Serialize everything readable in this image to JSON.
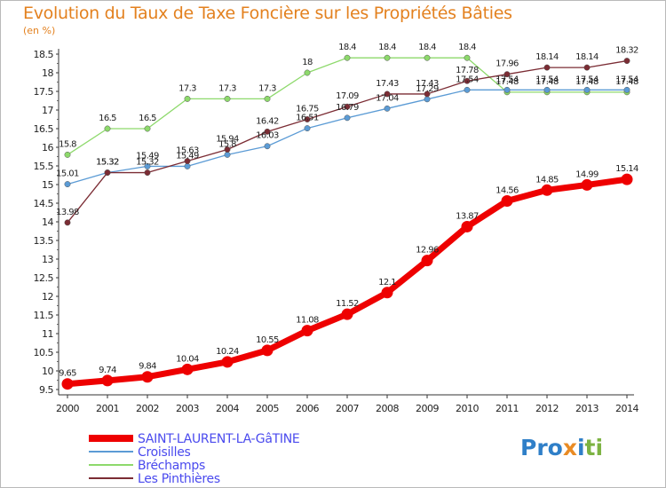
{
  "title": "Evolution du Taux de Taxe Foncière sur les Propriétés Bâties",
  "unit": "(en %)",
  "logo": {
    "part1": "Pro",
    "part2": "x",
    "part3": "i",
    "part4": "ti"
  },
  "chart_data": {
    "type": "line",
    "x": [
      "2000",
      "2001",
      "2002",
      "2003",
      "2004",
      "2005",
      "2006",
      "2007",
      "2008",
      "2009",
      "2010",
      "2011",
      "2012",
      "2013",
      "2014"
    ],
    "ylim": [
      9.5,
      18.5
    ],
    "yticks": [
      9.5,
      10,
      10.5,
      11,
      11.5,
      12,
      12.5,
      13,
      13.5,
      14,
      14.5,
      15,
      15.5,
      16,
      16.5,
      17,
      17.5,
      18,
      18.5
    ],
    "grid": false,
    "legend_position": "bottom-left",
    "series": [
      {
        "name": "SAINT-LAURENT-LA-GâTINE",
        "color": "#ee0000",
        "values": [
          9.65,
          9.74,
          9.84,
          10.04,
          10.24,
          10.55,
          11.08,
          11.52,
          12.1,
          12.96,
          13.87,
          14.56,
          14.85,
          14.99,
          15.14
        ],
        "labels": [
          "9.65",
          "9.74",
          "9.84",
          "10.04",
          "10.24",
          "10.55",
          "11.08",
          "11.52",
          "12.1",
          "12.96",
          "13.87",
          "14.56",
          "14.85",
          "14.99",
          "15.14"
        ]
      },
      {
        "name": "Croisilles",
        "color": "#5b9bd5",
        "values": [
          15.01,
          15.32,
          15.49,
          15.49,
          15.8,
          16.03,
          16.51,
          16.79,
          17.04,
          17.29,
          17.54,
          17.54,
          17.54,
          17.54,
          17.54
        ],
        "labels": [
          "15.01",
          "15.32",
          "15.49",
          "15.49",
          "15.8",
          "16.03",
          "16.51",
          "16.79",
          "17.04",
          "17.29",
          "17.54",
          "17.54",
          "17.54",
          "17.54",
          "17.54"
        ]
      },
      {
        "name": "Bréchamps",
        "color": "#8dd96b",
        "values": [
          15.8,
          16.5,
          16.5,
          17.3,
          17.3,
          17.3,
          18,
          18.4,
          18.4,
          18.4,
          18.4,
          17.48,
          17.48,
          17.48,
          17.48
        ],
        "labels": [
          "15.8",
          "16.5",
          "16.5",
          "17.3",
          "17.3",
          "17.3",
          "18",
          "18.4",
          "18.4",
          "18.4",
          "18.4",
          "17.48",
          "17.48",
          "17.48",
          "17.48"
        ]
      },
      {
        "name": "Les Pinthières",
        "color": "#7b2c34",
        "values": [
          13.98,
          15.32,
          15.32,
          15.63,
          15.94,
          16.42,
          16.75,
          17.09,
          17.43,
          17.43,
          17.78,
          17.96,
          18.14,
          18.14,
          18.32
        ],
        "labels": [
          "13.98",
          "15.32",
          "15.32",
          "15.63",
          "15.94",
          "16.42",
          "16.75",
          "17.09",
          "17.43",
          "17.43",
          "17.78",
          "17.96",
          "18.14",
          "18.14",
          "18.32"
        ]
      }
    ]
  }
}
